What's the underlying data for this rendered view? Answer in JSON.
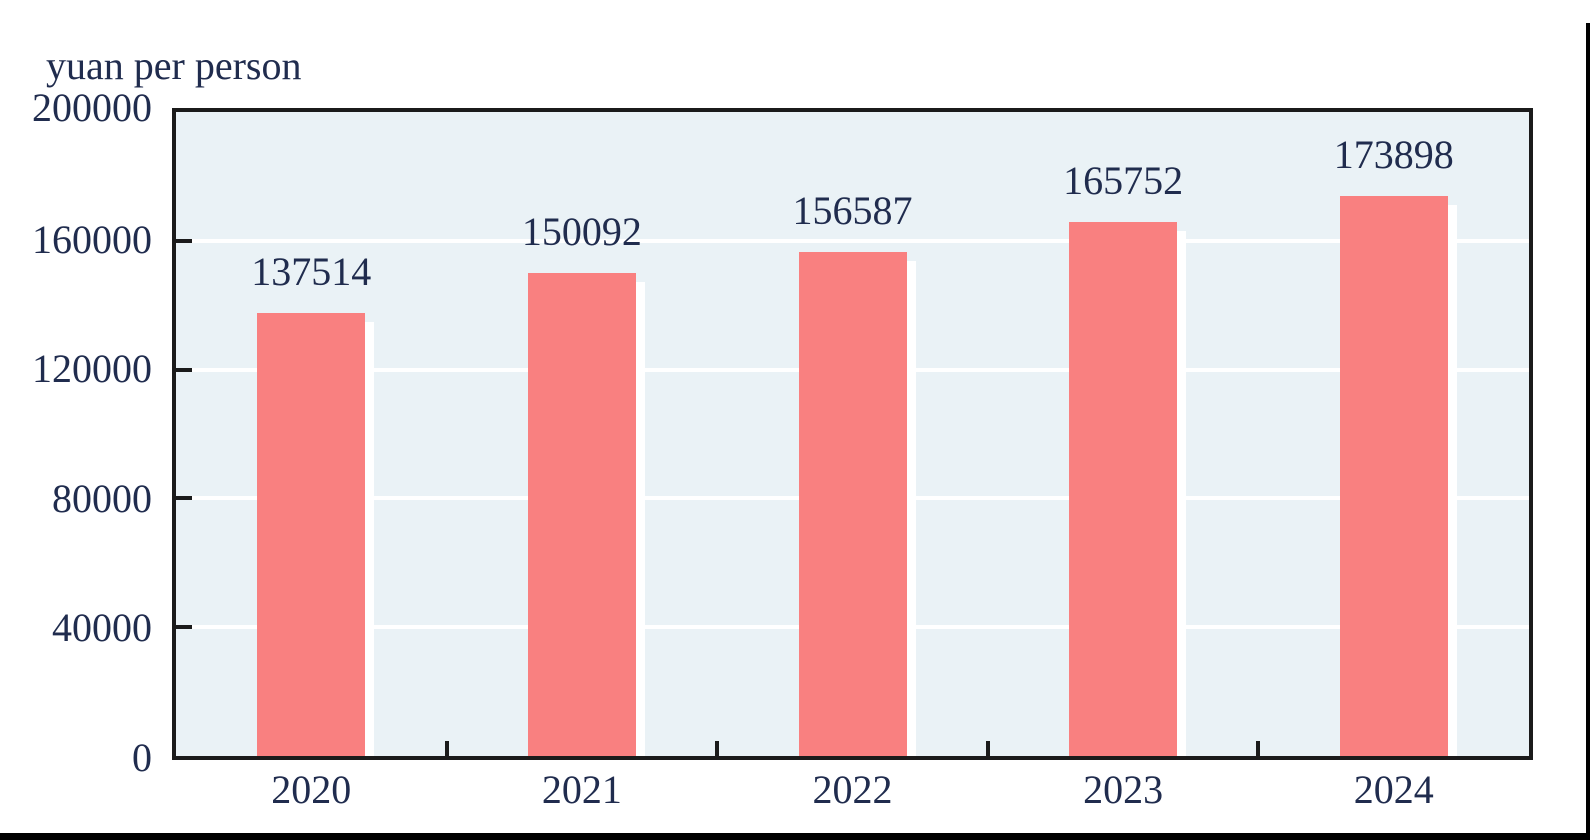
{
  "chart_data": {
    "type": "bar",
    "title": "",
    "unit_label": "yuan per person",
    "categories": [
      "2020",
      "2021",
      "2022",
      "2023",
      "2024"
    ],
    "values": [
      137514,
      150092,
      156587,
      165752,
      173898
    ],
    "xlabel": "",
    "ylabel": "yuan per person",
    "ylim": [
      0,
      200000
    ],
    "y_ticks": [
      0,
      40000,
      80000,
      120000,
      160000,
      200000
    ],
    "grid_values": [
      40000,
      80000,
      120000,
      160000
    ],
    "grid": "horizontal-white",
    "legend_position": "none",
    "bar_value_labels": [
      "137514",
      "150092",
      "156587",
      "165752",
      "173898"
    ]
  },
  "colors": {
    "bar": "#F98080",
    "bar_shadow": "#FFFFFF",
    "plot_background": "#EAF2F6",
    "gridline": "#FFFFFF",
    "axis": "#1B1B1B",
    "text": "#202C4E",
    "page_background": "#FFFFFF",
    "edge_band": "#000000"
  }
}
